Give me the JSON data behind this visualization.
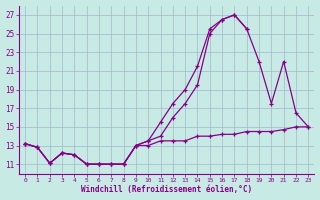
{
  "xlabel": "Windchill (Refroidissement éolien,°C)",
  "xlim": [
    -0.5,
    23.5
  ],
  "ylim": [
    10,
    28
  ],
  "yticks": [
    11,
    13,
    15,
    17,
    19,
    21,
    23,
    25,
    27
  ],
  "xticks": [
    0,
    1,
    2,
    3,
    4,
    5,
    6,
    7,
    8,
    9,
    10,
    11,
    12,
    13,
    14,
    15,
    16,
    17,
    18,
    19,
    20,
    21,
    22,
    23
  ],
  "bg_color": "#c8eae4",
  "grid_color": "#a0b8cc",
  "line_color": "#880088",
  "line1_x": [
    0,
    1,
    2,
    3,
    4,
    5,
    6,
    7,
    8,
    9,
    10,
    11,
    12,
    13,
    14,
    15,
    16,
    17,
    18
  ],
  "line1_y": [
    13.2,
    12.8,
    11.1,
    12.2,
    12.0,
    11.0,
    11.0,
    11.0,
    11.0,
    13.0,
    13.5,
    15.5,
    17.5,
    19.0,
    21.5,
    25.5,
    26.5,
    27.0,
    25.5
  ],
  "line2_x": [
    0,
    1,
    2,
    3,
    4,
    5,
    6,
    7,
    8,
    9,
    10,
    11,
    12,
    13,
    14,
    15,
    16,
    17,
    18,
    19,
    20,
    21,
    22,
    23
  ],
  "line2_y": [
    13.2,
    12.8,
    11.1,
    12.2,
    12.0,
    11.0,
    11.0,
    11.0,
    11.0,
    13.0,
    13.5,
    14.0,
    16.0,
    17.5,
    19.5,
    25.0,
    26.5,
    27.0,
    25.5,
    22.0,
    17.5,
    22.0,
    16.5,
    15.0
  ],
  "line3_x": [
    0,
    1,
    2,
    3,
    4,
    5,
    6,
    7,
    8,
    9,
    10,
    11,
    12,
    13,
    14,
    15,
    16,
    17,
    18,
    19,
    20,
    21,
    22,
    23
  ],
  "line3_y": [
    13.2,
    12.8,
    11.1,
    12.2,
    12.0,
    11.0,
    11.0,
    11.0,
    11.0,
    13.0,
    13.0,
    13.5,
    13.5,
    13.5,
    14.0,
    14.0,
    14.2,
    14.2,
    14.5,
    14.5,
    14.5,
    14.7,
    15.0,
    15.0
  ]
}
